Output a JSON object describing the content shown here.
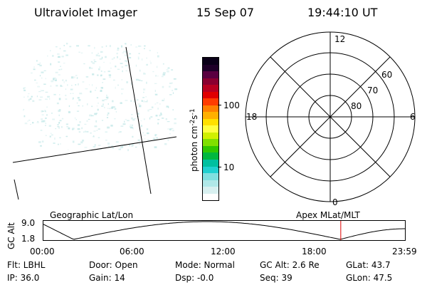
{
  "header": {
    "instrument": "Ultraviolet Imager",
    "date": "15 Sep 07",
    "time": "19:44:10 UT"
  },
  "colorbar": {
    "label": "photon cm-2s-1",
    "ticks": [
      "100",
      "10"
    ],
    "colors": [
      "#0a0018",
      "#1e0028",
      "#5a0040",
      "#8a0030",
      "#b80020",
      "#e00000",
      "#ff3c00",
      "#ff8000",
      "#ffb000",
      "#ffe000",
      "#ffff40",
      "#d0f000",
      "#80e000",
      "#30c800",
      "#00b840",
      "#00c0a0",
      "#20d0d0",
      "#80e0e0",
      "#b0e8e8",
      "#d8f0f0",
      "#ffffff"
    ]
  },
  "polar": {
    "hour_labels": {
      "top": "12",
      "left": "18",
      "right": "6",
      "bottom": "0"
    },
    "lat_labels": [
      "60",
      "70",
      "80"
    ]
  },
  "timeline": {
    "ylabel": "GC Alt",
    "yticks": [
      "9.0",
      "1.8"
    ],
    "left_caption": "Geographic Lat/Lon",
    "right_caption": "Apex MLat/MLT",
    "xticks": [
      "00:00",
      "06:00",
      "12:00",
      "18:00",
      "23:59"
    ],
    "current_time_hours": 19.74
  },
  "info": {
    "flt": "Flt: LBHL",
    "ip": "IP: 36.0",
    "door": "Door: Open",
    "gain": "Gain: 14",
    "mode": "Mode: Normal",
    "dsp": "Dsp:   -0.0",
    "gcalt": "GC Alt: 2.6 Re",
    "seq": "Seq: 39",
    "glat": "GLat:  43.7",
    "glon": "GLon:  47.5"
  },
  "colors": {
    "marker": "#e00000",
    "speckle": "#bfe6e6"
  }
}
